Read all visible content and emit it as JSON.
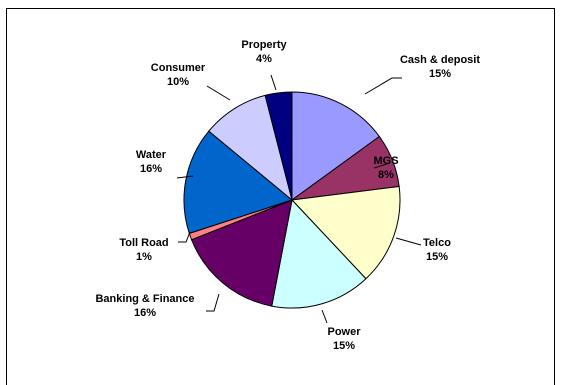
{
  "chart_data": {
    "type": "pie",
    "title": "",
    "slices": [
      {
        "name": "Cash & deposit",
        "value": 15,
        "label": "15%",
        "color": "#9999ff"
      },
      {
        "name": "MGS",
        "value": 8,
        "label": "8%",
        "color": "#993366"
      },
      {
        "name": "Telco",
        "value": 15,
        "label": "15%",
        "color": "#ffffcc"
      },
      {
        "name": "Power",
        "value": 15,
        "label": "15%",
        "color": "#ccffff"
      },
      {
        "name": "Banking & Finance",
        "value": 16,
        "label": "16%",
        "color": "#660066"
      },
      {
        "name": "Toll Road",
        "value": 1,
        "label": "1%",
        "color": "#ff8080"
      },
      {
        "name": "Water",
        "value": 16,
        "label": "16%",
        "color": "#0066cc"
      },
      {
        "name": "Consumer",
        "value": 10,
        "label": "10%",
        "color": "#ccccff"
      },
      {
        "name": "Property",
        "value": 4,
        "label": "4%",
        "color": "#000080"
      }
    ],
    "start_angle": "12 o'clock",
    "direction": "clockwise"
  }
}
